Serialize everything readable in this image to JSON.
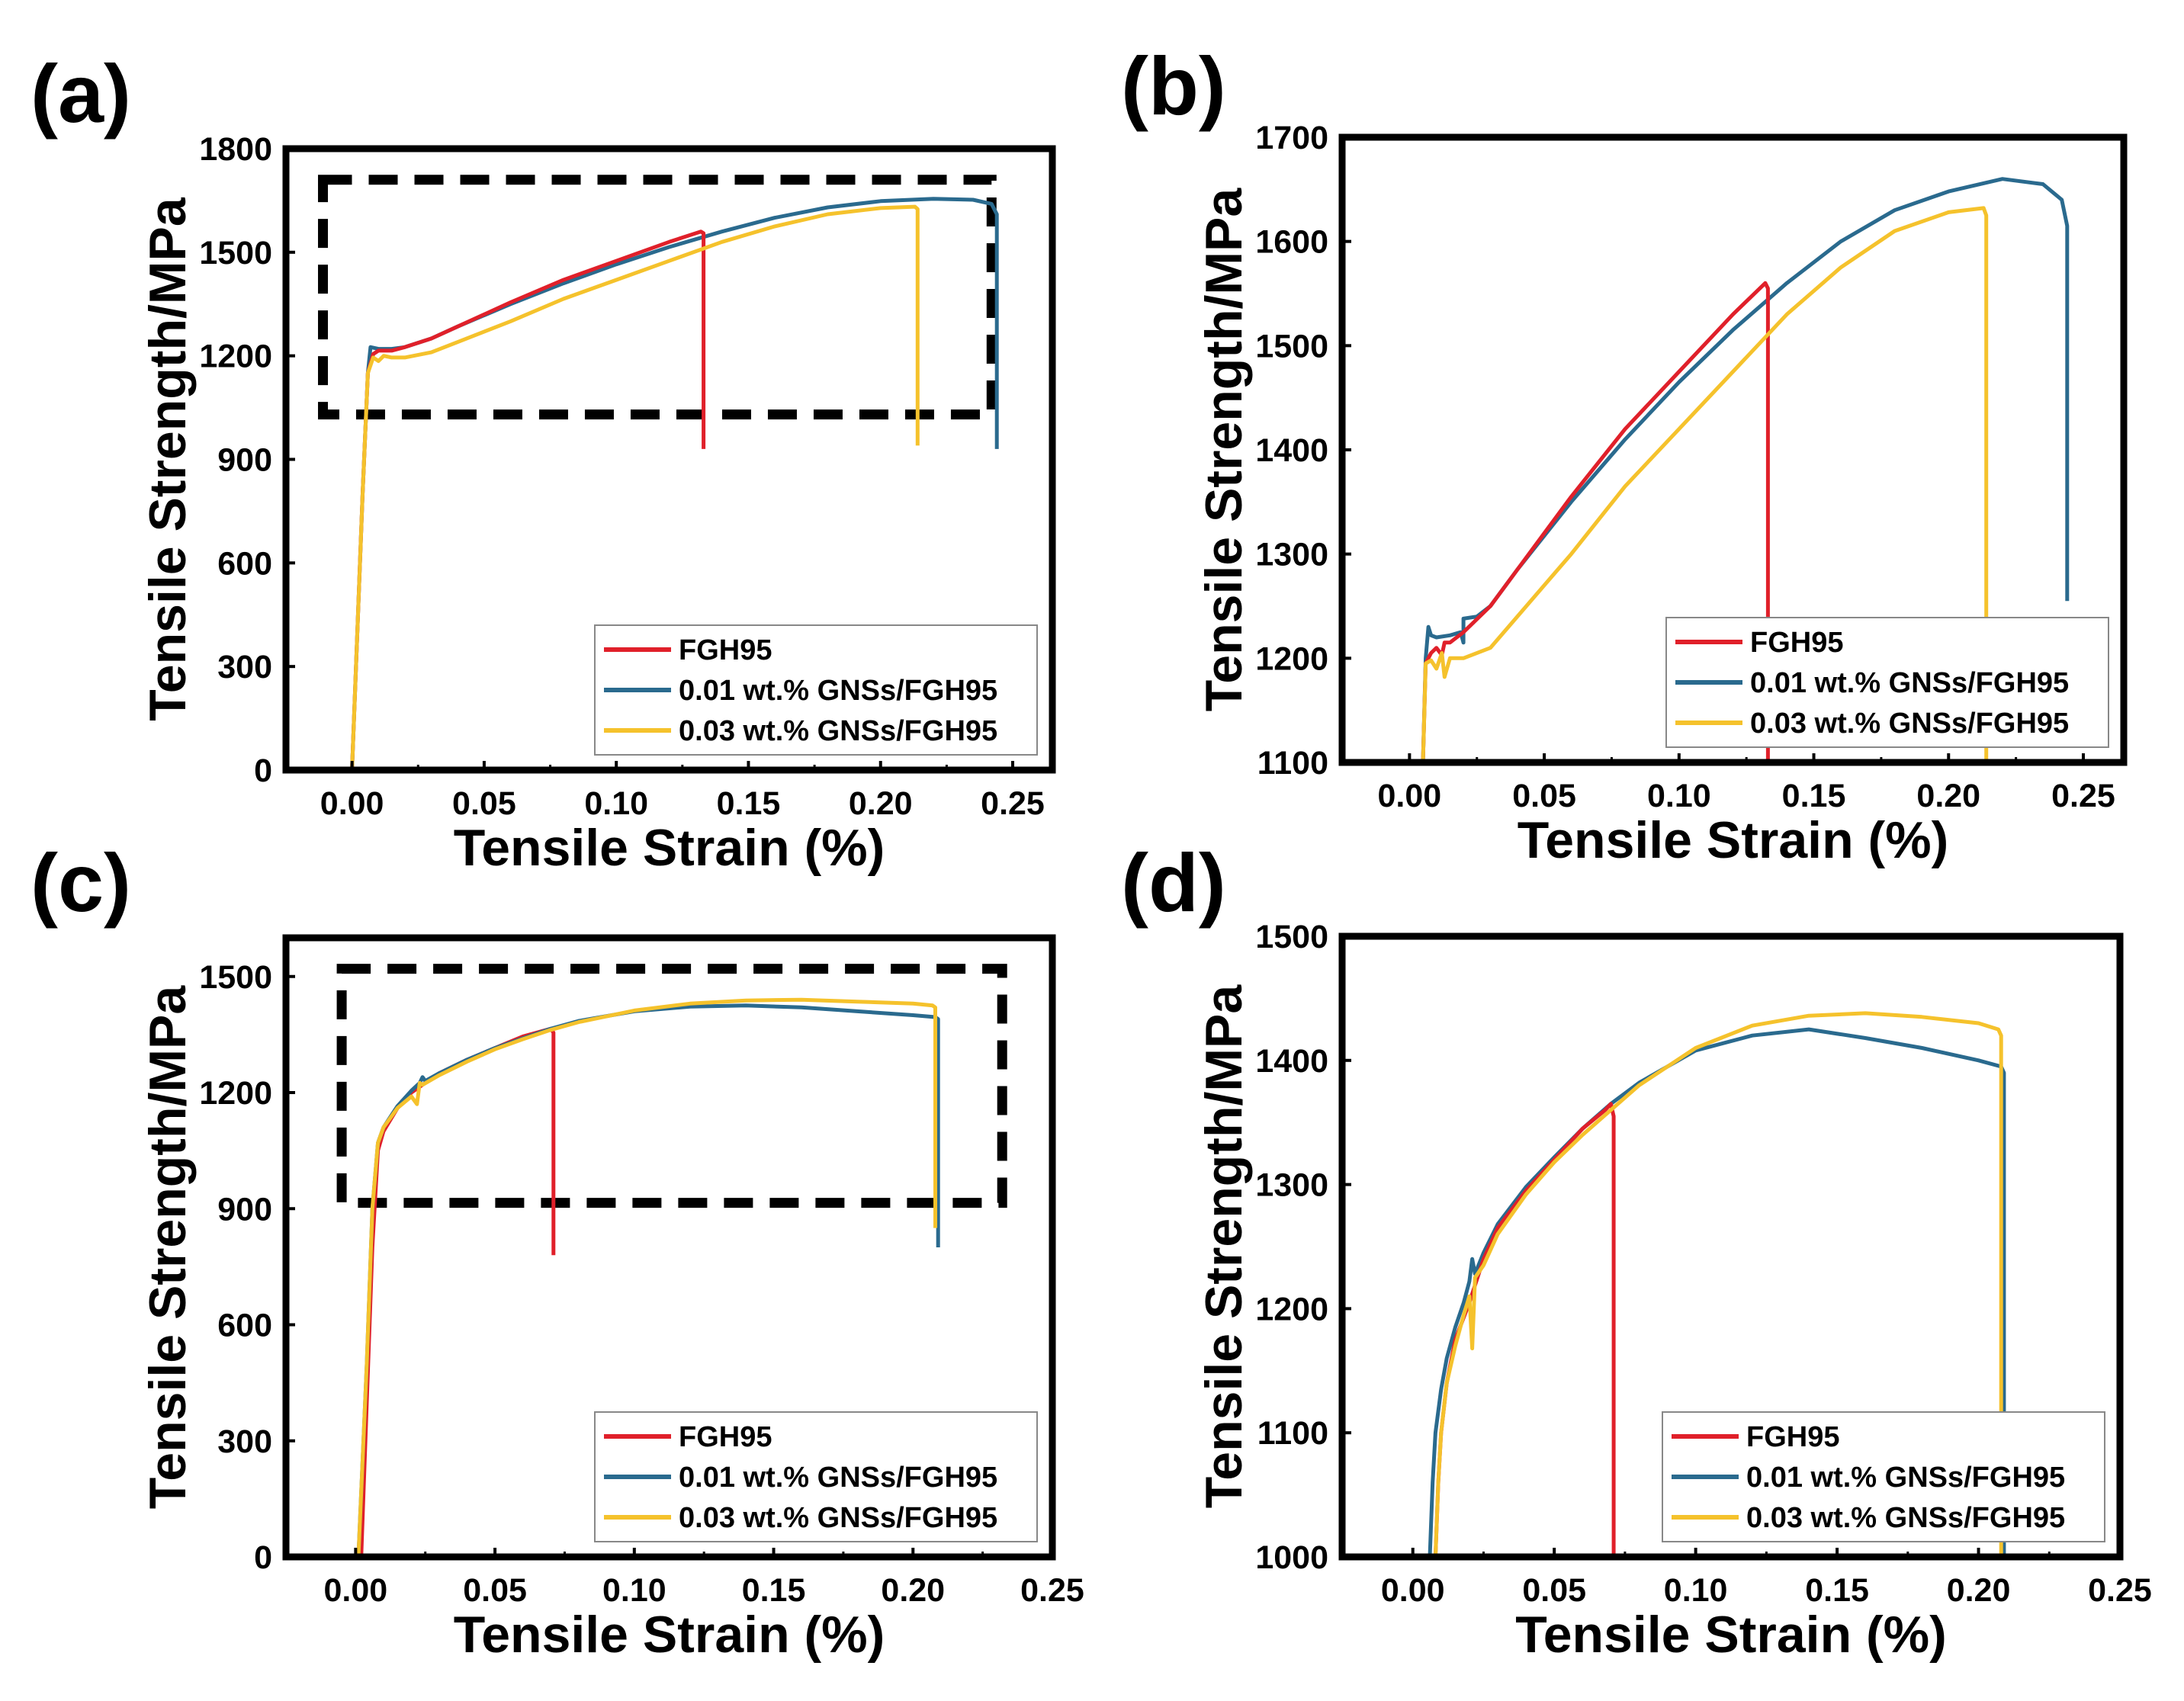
{
  "figure": {
    "colors": {
      "FGH95": "#e0202a",
      "GNS001": "#2a6a8e",
      "GNS003": "#f5c22c"
    }
  },
  "chart_data": [
    {
      "panel": "(a)",
      "type": "line",
      "xlabel": "Tensile Strain (%)",
      "ylabel": "Tensile Strength/MPa",
      "xlim": [
        -0.025,
        0.265
      ],
      "ylim": [
        0,
        1800
      ],
      "xticks": [
        0.0,
        0.05,
        0.1,
        0.15,
        0.2,
        0.25
      ],
      "xtick_labels": [
        "0.00",
        "0.05",
        "0.10",
        "0.15",
        "0.20",
        "0.25"
      ],
      "yticks": [
        0,
        300,
        600,
        900,
        1200,
        1500,
        1800
      ],
      "ytick_labels": [
        "0",
        "300",
        "600",
        "900",
        "1200",
        "1500",
        "1800"
      ],
      "legend": [
        "FGH95",
        "0.01 wt.% GNSs/FGH95",
        "0.03 wt.% GNSs/FGH95"
      ],
      "legend_position": "bottom-right",
      "annotation": "dashed rectangle marking zoom region",
      "zoom_box": {
        "x": [
          -0.011,
          0.242
        ],
        "y": [
          1030,
          1710
        ]
      },
      "series": [
        {
          "name": "0.01 wt.% GNSs/FGH95",
          "color_key": "GNS001",
          "x": [
            0.0,
            0.002,
            0.004,
            0.006,
            0.007,
            0.01,
            0.015,
            0.02,
            0.03,
            0.04,
            0.06,
            0.08,
            0.1,
            0.12,
            0.14,
            0.16,
            0.18,
            0.2,
            0.22,
            0.235,
            0.242,
            0.244,
            0.244
          ],
          "y": [
            0,
            400,
            800,
            1150,
            1225,
            1220,
            1220,
            1225,
            1250,
            1285,
            1350,
            1410,
            1465,
            1515,
            1560,
            1600,
            1630,
            1648,
            1655,
            1652,
            1640,
            1610,
            930
          ]
        },
        {
          "name": "FGH95",
          "color_key": "FGH95",
          "x": [
            0.0,
            0.002,
            0.004,
            0.006,
            0.008,
            0.01,
            0.015,
            0.02,
            0.03,
            0.04,
            0.06,
            0.08,
            0.1,
            0.12,
            0.132,
            0.133,
            0.133
          ],
          "y": [
            0,
            400,
            800,
            1150,
            1205,
            1215,
            1215,
            1225,
            1250,
            1285,
            1355,
            1420,
            1475,
            1530,
            1560,
            1555,
            930
          ]
        },
        {
          "name": "0.03 wt.% GNSs/FGH95",
          "color_key": "GNS003",
          "x": [
            0.0,
            0.002,
            0.004,
            0.006,
            0.008,
            0.01,
            0.012,
            0.015,
            0.02,
            0.03,
            0.04,
            0.06,
            0.08,
            0.1,
            0.12,
            0.14,
            0.16,
            0.18,
            0.2,
            0.213,
            0.214,
            0.214
          ],
          "y": [
            0,
            400,
            800,
            1150,
            1195,
            1185,
            1200,
            1195,
            1195,
            1210,
            1240,
            1300,
            1365,
            1420,
            1475,
            1530,
            1575,
            1610,
            1628,
            1632,
            1625,
            940
          ]
        }
      ]
    },
    {
      "panel": "(b)",
      "type": "line",
      "xlabel": "Tensile Strain (%)",
      "ylabel": "Tensile Strength/MPa",
      "xlim": [
        -0.025,
        0.265
      ],
      "ylim": [
        1100,
        1700
      ],
      "xticks": [
        0.0,
        0.05,
        0.1,
        0.15,
        0.2,
        0.25
      ],
      "xtick_labels": [
        "0.00",
        "0.05",
        "0.10",
        "0.15",
        "0.20",
        "0.25"
      ],
      "yticks": [
        1100,
        1200,
        1300,
        1400,
        1500,
        1600,
        1700
      ],
      "ytick_labels": [
        "1100",
        "1200",
        "1300",
        "1400",
        "1500",
        "1600",
        "1700"
      ],
      "legend": [
        "FGH95",
        "0.01 wt.% GNSs/FGH95",
        "0.03 wt.% GNSs/FGH95"
      ],
      "legend_position": "bottom-right",
      "series": [
        {
          "name": "0.01 wt.% GNSs/FGH95",
          "color_key": "GNS001",
          "x": [
            0.005,
            0.006,
            0.007,
            0.008,
            0.01,
            0.015,
            0.019,
            0.02,
            0.02,
            0.025,
            0.03,
            0.04,
            0.06,
            0.08,
            0.1,
            0.12,
            0.14,
            0.16,
            0.18,
            0.2,
            0.22,
            0.235,
            0.242,
            0.244,
            0.244
          ],
          "y": [
            1100,
            1200,
            1230,
            1222,
            1220,
            1222,
            1225,
            1215,
            1238,
            1240,
            1250,
            1285,
            1350,
            1410,
            1465,
            1515,
            1560,
            1600,
            1630,
            1648,
            1660,
            1655,
            1640,
            1615,
            1255
          ]
        },
        {
          "name": "FGH95",
          "color_key": "FGH95",
          "x": [
            0.005,
            0.006,
            0.008,
            0.01,
            0.012,
            0.013,
            0.015,
            0.02,
            0.03,
            0.04,
            0.06,
            0.08,
            0.1,
            0.12,
            0.132,
            0.133,
            0.133
          ],
          "y": [
            1100,
            1195,
            1205,
            1210,
            1203,
            1215,
            1215,
            1225,
            1250,
            1285,
            1355,
            1420,
            1475,
            1530,
            1560,
            1555,
            1100
          ]
        },
        {
          "name": "0.03 wt.% GNSs/FGH95",
          "color_key": "GNS003",
          "x": [
            0.005,
            0.006,
            0.008,
            0.01,
            0.012,
            0.013,
            0.015,
            0.02,
            0.03,
            0.04,
            0.06,
            0.08,
            0.1,
            0.12,
            0.14,
            0.16,
            0.18,
            0.2,
            0.213,
            0.214,
            0.214
          ],
          "y": [
            1100,
            1195,
            1198,
            1190,
            1205,
            1182,
            1200,
            1200,
            1210,
            1240,
            1300,
            1365,
            1420,
            1475,
            1530,
            1575,
            1610,
            1628,
            1632,
            1625,
            1100
          ]
        }
      ]
    },
    {
      "panel": "(c)",
      "type": "line",
      "xlabel": "Tensile Strain (%)",
      "ylabel": "Tensile Strength/MPa",
      "xlim": [
        -0.025,
        0.25
      ],
      "ylim": [
        0,
        1600
      ],
      "xticks": [
        0.0,
        0.05,
        0.1,
        0.15,
        0.2,
        0.25
      ],
      "xtick_labels": [
        "0.00",
        "0.05",
        "0.10",
        "0.15",
        "0.20",
        "0.25"
      ],
      "yticks": [
        0,
        300,
        600,
        900,
        1200,
        1500
      ],
      "ytick_labels": [
        "0",
        "300",
        "600",
        "900",
        "1200",
        "1500"
      ],
      "legend": [
        "FGH95",
        "0.01 wt.% GNSs/FGH95",
        "0.03 wt.% GNSs/FGH95"
      ],
      "legend_position": "bottom-right",
      "annotation": "dashed rectangle marking zoom region",
      "zoom_box": {
        "x": [
          -0.005,
          0.232
        ],
        "y": [
          915,
          1520
        ]
      },
      "series": [
        {
          "name": "FGH95",
          "color_key": "FGH95",
          "x": [
            0.002,
            0.004,
            0.006,
            0.008,
            0.01,
            0.015,
            0.02,
            0.03,
            0.04,
            0.05,
            0.06,
            0.07,
            0.071,
            0.071
          ],
          "y": [
            0,
            400,
            800,
            1050,
            1100,
            1160,
            1200,
            1250,
            1285,
            1315,
            1345,
            1365,
            1355,
            780
          ]
        },
        {
          "name": "0.01 wt.% GNSs/FGH95",
          "color_key": "GNS001",
          "x": [
            0.001,
            0.004,
            0.006,
            0.008,
            0.01,
            0.015,
            0.02,
            0.023,
            0.024,
            0.025,
            0.03,
            0.04,
            0.05,
            0.06,
            0.07,
            0.08,
            0.1,
            0.12,
            0.14,
            0.16,
            0.18,
            0.2,
            0.208,
            0.209,
            0.209
          ],
          "y": [
            0,
            500,
            900,
            1070,
            1110,
            1165,
            1205,
            1225,
            1240,
            1230,
            1250,
            1285,
            1315,
            1340,
            1365,
            1385,
            1410,
            1422,
            1425,
            1420,
            1410,
            1400,
            1395,
            1390,
            800
          ]
        },
        {
          "name": "0.03 wt.% GNSs/FGH95",
          "color_key": "GNS003",
          "x": [
            0.001,
            0.004,
            0.006,
            0.008,
            0.01,
            0.015,
            0.02,
            0.022,
            0.023,
            0.024,
            0.03,
            0.04,
            0.05,
            0.06,
            0.07,
            0.08,
            0.1,
            0.12,
            0.14,
            0.16,
            0.18,
            0.2,
            0.207,
            0.208,
            0.208
          ],
          "y": [
            0,
            500,
            900,
            1070,
            1110,
            1160,
            1190,
            1170,
            1225,
            1220,
            1245,
            1280,
            1312,
            1338,
            1362,
            1382,
            1412,
            1430,
            1438,
            1440,
            1435,
            1430,
            1425,
            1420,
            850
          ]
        }
      ]
    },
    {
      "panel": "(d)",
      "type": "line",
      "xlabel": "Tensile Strain (%)",
      "ylabel": "Tensile Strength/MPa",
      "xlim": [
        -0.025,
        0.25
      ],
      "ylim": [
        1000,
        1500
      ],
      "xticks": [
        0.0,
        0.05,
        0.1,
        0.15,
        0.2,
        0.25
      ],
      "xtick_labels": [
        "0.00",
        "0.05",
        "0.10",
        "0.15",
        "0.20",
        "0.25"
      ],
      "yticks": [
        1000,
        1100,
        1200,
        1300,
        1400,
        1500
      ],
      "ytick_labels": [
        "1000",
        "1100",
        "1200",
        "1300",
        "1400",
        "1500"
      ],
      "legend": [
        "FGH95",
        "0.01 wt.% GNSs/FGH95",
        "0.03 wt.% GNSs/FGH95"
      ],
      "legend_position": "bottom-right",
      "series": [
        {
          "name": "0.01 wt.% GNSs/FGH95",
          "color_key": "GNS001",
          "x": [
            0.006,
            0.007,
            0.008,
            0.01,
            0.012,
            0.015,
            0.018,
            0.02,
            0.021,
            0.022,
            0.025,
            0.03,
            0.04,
            0.05,
            0.06,
            0.07,
            0.08,
            0.1,
            0.12,
            0.14,
            0.16,
            0.18,
            0.2,
            0.208,
            0.209,
            0.209
          ],
          "y": [
            1000,
            1060,
            1100,
            1135,
            1160,
            1185,
            1205,
            1222,
            1240,
            1228,
            1245,
            1268,
            1298,
            1322,
            1345,
            1365,
            1382,
            1408,
            1420,
            1425,
            1418,
            1410,
            1400,
            1395,
            1390,
            1000
          ]
        },
        {
          "name": "FGH95",
          "color_key": "FGH95",
          "x": [
            0.008,
            0.009,
            0.01,
            0.012,
            0.015,
            0.02,
            0.025,
            0.03,
            0.04,
            0.05,
            0.06,
            0.068,
            0.07,
            0.071,
            0.071
          ],
          "y": [
            1000,
            1060,
            1100,
            1140,
            1175,
            1205,
            1240,
            1265,
            1295,
            1320,
            1345,
            1360,
            1365,
            1355,
            1000
          ]
        },
        {
          "name": "0.03 wt.% GNSs/FGH95",
          "color_key": "GNS003",
          "x": [
            0.008,
            0.009,
            0.01,
            0.012,
            0.015,
            0.018,
            0.02,
            0.021,
            0.022,
            0.025,
            0.03,
            0.04,
            0.05,
            0.06,
            0.07,
            0.08,
            0.1,
            0.12,
            0.14,
            0.16,
            0.18,
            0.2,
            0.207,
            0.208,
            0.208
          ],
          "y": [
            1000,
            1060,
            1100,
            1140,
            1170,
            1195,
            1210,
            1168,
            1225,
            1235,
            1260,
            1292,
            1318,
            1340,
            1360,
            1380,
            1410,
            1428,
            1436,
            1438,
            1435,
            1430,
            1425,
            1420,
            1000
          ]
        }
      ]
    }
  ]
}
